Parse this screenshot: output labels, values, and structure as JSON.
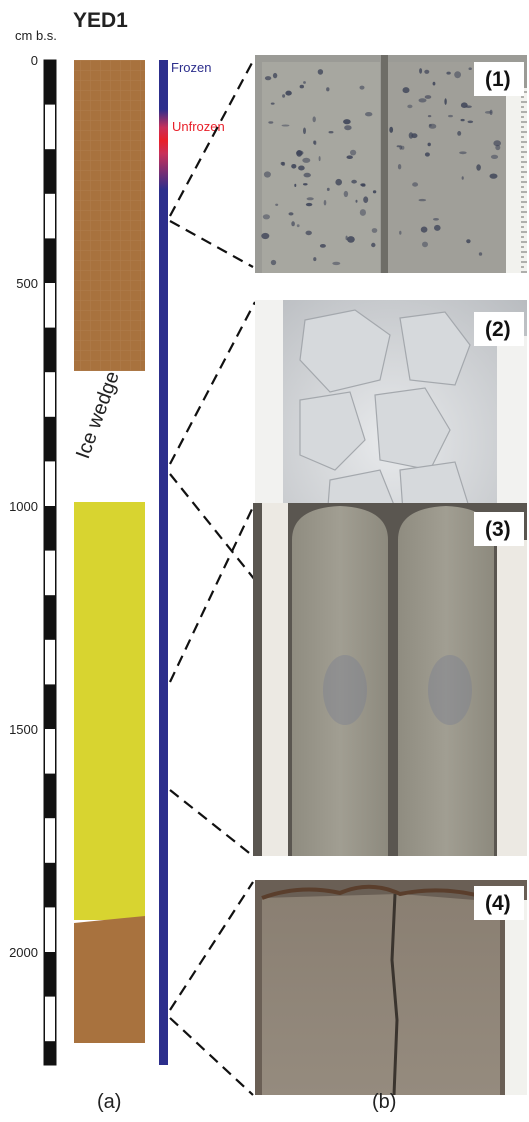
{
  "title": "YED1",
  "axis_unit": "cm b.s.",
  "ticks": [
    {
      "label": "0",
      "value": 0
    },
    {
      "label": "500",
      "value": 500
    },
    {
      "label": "1000",
      "value": 1000
    },
    {
      "label": "1500",
      "value": 1500
    },
    {
      "label": "2000",
      "value": 2000
    }
  ],
  "layers": [
    {
      "name": "brown-top",
      "from": 0,
      "to": 725,
      "color": "#a8723e"
    },
    {
      "name": "ice-wedge",
      "label": "Ice wedge",
      "from": 725,
      "to": 1015,
      "color": "#ffffff"
    },
    {
      "name": "yellow",
      "from": 1015,
      "to": 1945,
      "color": "#d8d430"
    },
    {
      "name": "brown-bottom",
      "from": 1945,
      "to": 2250,
      "color": "#a8723e"
    }
  ],
  "thermal": {
    "frozen_label": "Frozen",
    "unfrozen_label": "Unfrozen",
    "frozen_color": "#2c2e8c",
    "unfrozen_color": "#e8202a"
  },
  "photos": [
    {
      "label": "(1)",
      "kind": "sediment-dark-spots"
    },
    {
      "label": "(2)",
      "kind": "ice"
    },
    {
      "label": "(3)",
      "kind": "sediment-rounded"
    },
    {
      "label": "(4)",
      "kind": "sediment-cracked"
    }
  ],
  "panel_labels": {
    "a": "(a)",
    "b": "(b)"
  }
}
